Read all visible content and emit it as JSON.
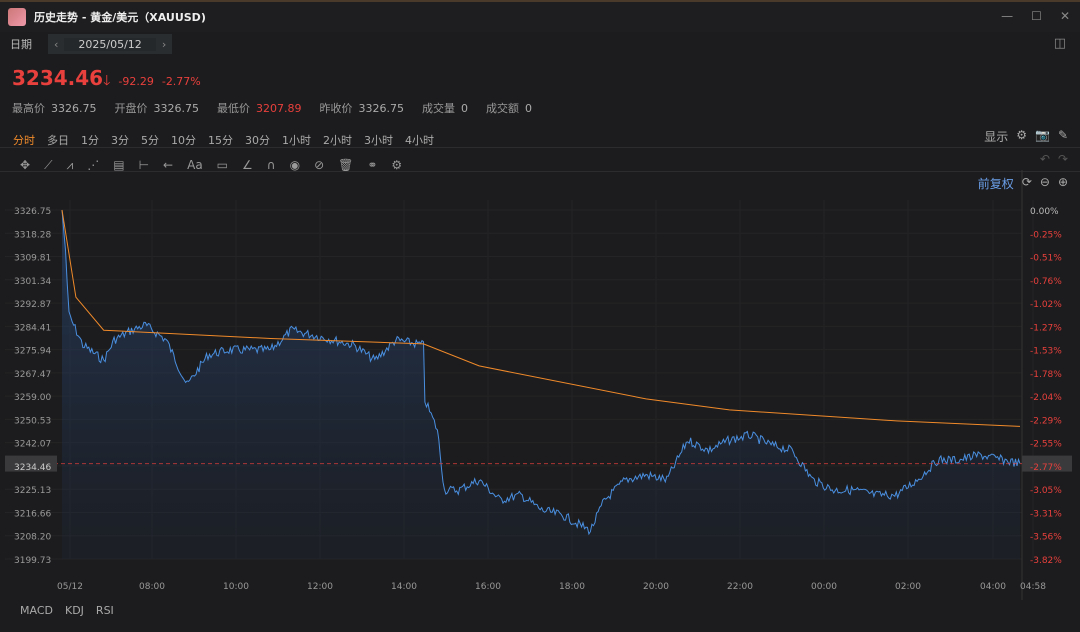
{
  "window": {
    "title": "历史走势 - 黄金/美元（XAUUSD)"
  },
  "date": {
    "label": "日期",
    "value": "2025/05/12",
    "prev": "‹",
    "next": "›"
  },
  "quote": {
    "price": "3234.46",
    "arrow": "🡓",
    "change": "-92.29",
    "change_pct": "-2.77%"
  },
  "stats": [
    {
      "label": "最高价",
      "value": "3326.75"
    },
    {
      "label": "开盘价",
      "value": "3326.75"
    },
    {
      "label": "最低价",
      "value": "3207.89"
    },
    {
      "label": "昨收价",
      "value": "3326.75"
    },
    {
      "label": "成交量",
      "value": "0"
    },
    {
      "label": "成交额",
      "value": "0"
    }
  ],
  "periods": [
    "分时",
    "多日",
    "1分",
    "3分",
    "5分",
    "10分",
    "15分",
    "30分",
    "1小时",
    "2小时",
    "3小时",
    "4小时"
  ],
  "toolbar_right": {
    "display": "显示"
  },
  "adjust": "前复权",
  "tools": [
    "move-icon",
    "trend-line-icon",
    "polyline-icon",
    "wave-icon",
    "fib-icon",
    "measure-icon",
    "arrow-icon",
    "Aa",
    "comment-icon",
    "pen-icon",
    "magnet-icon",
    "eye-icon",
    "hide-icon",
    "trash-icon",
    "compare-icon",
    "settings-icon"
  ],
  "indicators": [
    "MACD",
    "KDJ",
    "RSI"
  ],
  "colors": {
    "accent": "#f08a2a",
    "down": "#e8403c",
    "price_line": "#4a8fe0",
    "avg_line": "#f08a2a"
  },
  "chart_data": {
    "type": "line",
    "y_ticks": [
      "3326.75",
      "3318.28",
      "3309.81",
      "3301.34",
      "3292.87",
      "3284.41",
      "3275.94",
      "3267.47",
      "3259.00",
      "3250.53",
      "3242.07",
      "3234.46",
      "3225.13",
      "3216.66",
      "3208.20",
      "3199.73"
    ],
    "pct_ticks": [
      "0.00%",
      "-0.25%",
      "-0.51%",
      "-0.76%",
      "-1.02%",
      "-1.27%",
      "-1.53%",
      "-1.78%",
      "-2.04%",
      "-2.29%",
      "-2.55%",
      "-2.77%",
      "-3.05%",
      "-3.31%",
      "-3.56%",
      "-3.82%"
    ],
    "x_ticks": [
      "05/12",
      "08:00",
      "10:00",
      "12:00",
      "14:00",
      "16:00",
      "18:00",
      "20:00",
      "22:00",
      "00:00",
      "02:00",
      "04:00",
      "04:58"
    ],
    "ylim": [
      3199.73,
      3326.75
    ],
    "xlim": [
      "06:00",
      "04:58"
    ],
    "price": [
      [
        "06:00",
        3326.75
      ],
      [
        "06:05",
        3312.2
      ],
      [
        "06:10",
        3288.5
      ],
      [
        "06:30",
        3277.6
      ],
      [
        "07:00",
        3272
      ],
      [
        "07:15",
        3279.4
      ],
      [
        "07:40",
        3283
      ],
      [
        "08:00",
        3284.9
      ],
      [
        "08:30",
        3279.4
      ],
      [
        "09:00",
        3263
      ],
      [
        "09:30",
        3274
      ],
      [
        "10:00",
        3275.8
      ],
      [
        "11:00",
        3275.8
      ],
      [
        "11:30",
        3283
      ],
      [
        "12:00",
        3281.3
      ],
      [
        "13:00",
        3277.6
      ],
      [
        "13:30",
        3272
      ],
      [
        "14:00",
        3279.4
      ],
      [
        "14:40",
        3277.6
      ],
      [
        "14:42",
        3257.6
      ],
      [
        "15:00",
        3246.7
      ],
      [
        "15:10",
        3224.8
      ],
      [
        "15:30",
        3224.8
      ],
      [
        "16:00",
        3228.5
      ],
      [
        "16:30",
        3221.2
      ],
      [
        "17:00",
        3223
      ],
      [
        "17:30",
        3217.5
      ],
      [
        "18:00",
        3215.7
      ],
      [
        "18:40",
        3210
      ],
      [
        "19:00",
        3221
      ],
      [
        "19:30",
        3228.5
      ],
      [
        "20:00",
        3230.3
      ],
      [
        "20:30",
        3228.5
      ],
      [
        "21:00",
        3243
      ],
      [
        "21:30",
        3239.3
      ],
      [
        "22:00",
        3243
      ],
      [
        "22:30",
        3244.8
      ],
      [
        "23:00",
        3241.2
      ],
      [
        "23:30",
        3239.3
      ],
      [
        "00:00",
        3228.5
      ],
      [
        "00:30",
        3224.8
      ],
      [
        "01:00",
        3224.8
      ],
      [
        "01:30",
        3223
      ],
      [
        "02:00",
        3223
      ],
      [
        "02:30",
        3228.5
      ],
      [
        "03:00",
        3235.8
      ],
      [
        "03:30",
        3235.8
      ],
      [
        "04:00",
        3237.6
      ],
      [
        "04:58",
        3234.46
      ]
    ],
    "average": [
      [
        "06:00",
        3326.75
      ],
      [
        "06:20",
        3295
      ],
      [
        "07:00",
        3283
      ],
      [
        "11:00",
        3280
      ],
      [
        "14:40",
        3278
      ],
      [
        "16:00",
        3270
      ],
      [
        "20:00",
        3258
      ],
      [
        "22:00",
        3254
      ],
      [
        "02:00",
        3250
      ],
      [
        "04:58",
        3248
      ]
    ]
  }
}
